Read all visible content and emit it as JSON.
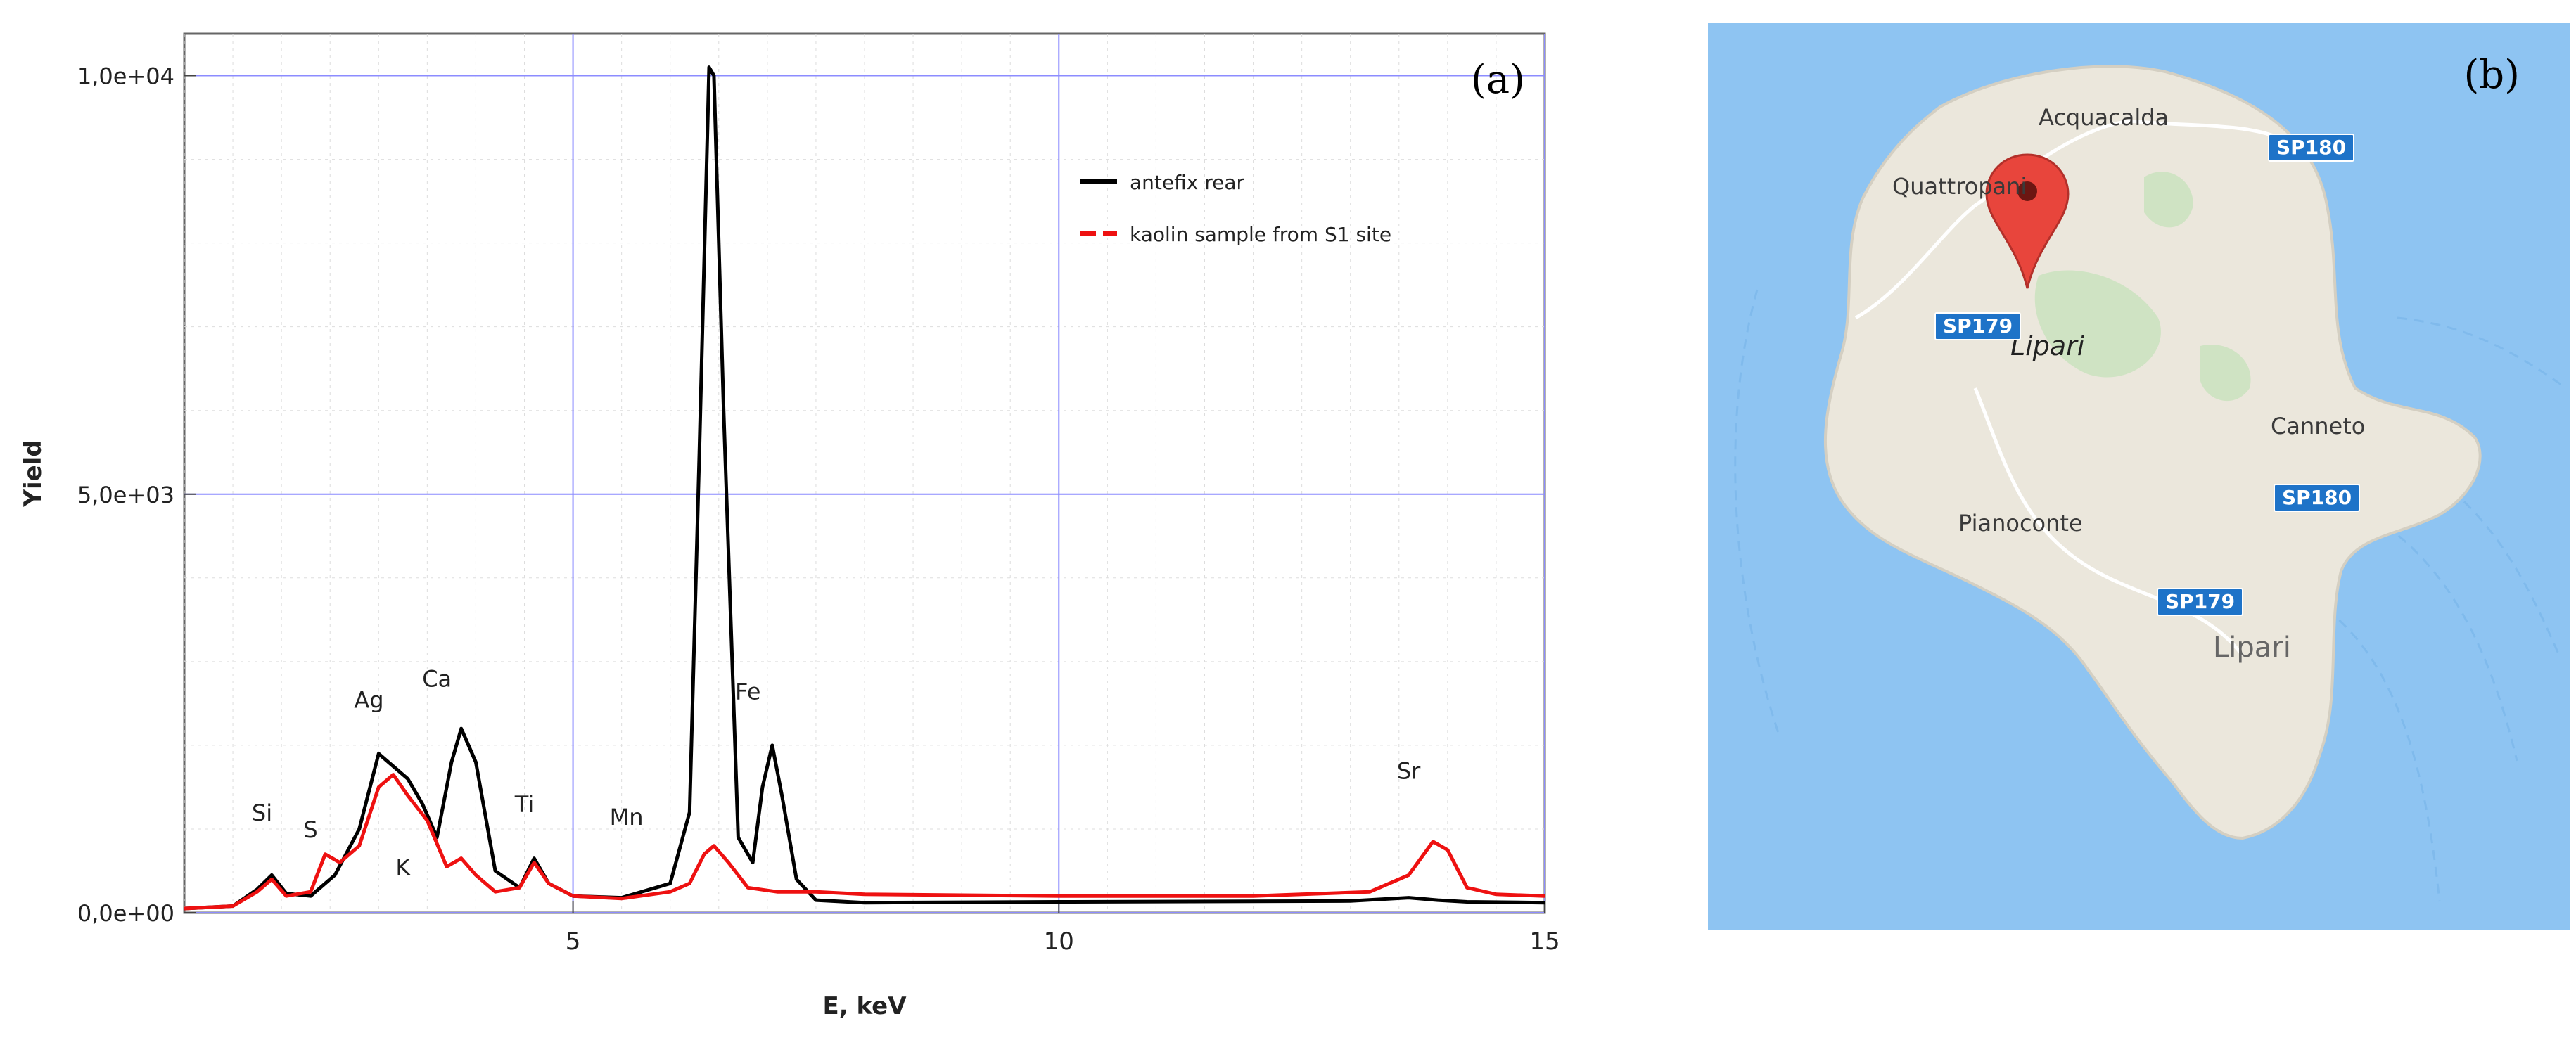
{
  "panel_a": {
    "tag": "(a)",
    "legend": [
      {
        "label": "antefix rear",
        "color": "#000000",
        "dash": "solid"
      },
      {
        "label": "kaolin sample from S1 site",
        "color": "#ee1111",
        "dash": "dashed"
      }
    ]
  },
  "panel_b": {
    "tag": "(b)",
    "places": {
      "acquacalda": "Acquacalda",
      "quattropani": "Quattropani",
      "lipari_center": "Lipari",
      "canneto": "Canneto",
      "pianoconte": "Pianoconte",
      "lipari_town": "Lipari"
    },
    "routes": {
      "sp180_north": "SP180",
      "sp179_west": "SP179",
      "sp180_east": "SP180",
      "sp179_south": "SP179"
    },
    "colors": {
      "sea": "#8ec4f2",
      "land": "#ebe7dc",
      "vegetation": "#cfe3c3",
      "marker": "#e8453c"
    },
    "icons": [
      "location-pin-icon"
    ]
  },
  "chart_data": {
    "type": "line",
    "xlabel": "E, keV",
    "ylabel": "Yield",
    "xlim": [
      1,
      15
    ],
    "ylim": [
      0,
      10500
    ],
    "xticks": [
      5,
      10,
      15
    ],
    "xtick_labels": [
      "5",
      "10",
      "15"
    ],
    "yticks": [
      0,
      5000,
      10000
    ],
    "ytick_labels": [
      "0,0e+00",
      "5,0e+03",
      "1,0e+04"
    ],
    "grid": true,
    "legend_position": "top-right",
    "series": [
      {
        "name": "antefix rear",
        "color": "#000000",
        "x": [
          1.0,
          1.5,
          1.75,
          1.9,
          2.05,
          2.3,
          2.55,
          2.8,
          3.0,
          3.15,
          3.3,
          3.45,
          3.6,
          3.75,
          3.85,
          4.0,
          4.2,
          4.45,
          4.6,
          4.75,
          5.0,
          5.5,
          6.0,
          6.2,
          6.3,
          6.4,
          6.45,
          6.55,
          6.7,
          6.85,
          6.95,
          7.05,
          7.15,
          7.3,
          7.5,
          8.0,
          10.0,
          13.0,
          13.6,
          13.9,
          14.2,
          15.0
        ],
        "y": [
          50,
          80,
          280,
          450,
          230,
          200,
          450,
          1000,
          1900,
          1750,
          1600,
          1300,
          900,
          1800,
          2200,
          1800,
          500,
          300,
          650,
          350,
          200,
          180,
          350,
          1200,
          5500,
          10100,
          10000,
          6000,
          900,
          600,
          1500,
          2000,
          1400,
          400,
          150,
          120,
          130,
          140,
          180,
          150,
          130,
          120
        ]
      },
      {
        "name": "kaolin sample from S1 site",
        "color": "#ee1111",
        "x": [
          1.0,
          1.5,
          1.75,
          1.9,
          2.05,
          2.3,
          2.45,
          2.6,
          2.8,
          3.0,
          3.15,
          3.3,
          3.5,
          3.7,
          3.85,
          4.0,
          4.2,
          4.45,
          4.6,
          4.75,
          5.0,
          5.5,
          6.0,
          6.2,
          6.35,
          6.45,
          6.6,
          6.8,
          7.1,
          7.5,
          8.0,
          10.0,
          12.0,
          13.2,
          13.6,
          13.85,
          14.0,
          14.2,
          14.5,
          15.0
        ],
        "y": [
          50,
          80,
          250,
          400,
          200,
          250,
          700,
          600,
          800,
          1500,
          1650,
          1400,
          1100,
          550,
          650,
          450,
          250,
          300,
          600,
          350,
          200,
          170,
          250,
          350,
          700,
          800,
          600,
          300,
          250,
          250,
          220,
          200,
          200,
          250,
          450,
          850,
          750,
          300,
          220,
          200
        ]
      }
    ],
    "annotations": [
      {
        "text": "Si",
        "x": 1.8,
        "y": 1100
      },
      {
        "text": "S",
        "x": 2.3,
        "y": 900
      },
      {
        "text": "Ag",
        "x": 2.9,
        "y": 2450
      },
      {
        "text": "Ca",
        "x": 3.6,
        "y": 2700
      },
      {
        "text": "K",
        "x": 3.25,
        "y": 450
      },
      {
        "text": "Ti",
        "x": 4.5,
        "y": 1200
      },
      {
        "text": "Mn",
        "x": 5.55,
        "y": 1050
      },
      {
        "text": "Fe",
        "x": 6.8,
        "y": 2550
      },
      {
        "text": "Sr",
        "x": 13.6,
        "y": 1600
      }
    ]
  }
}
